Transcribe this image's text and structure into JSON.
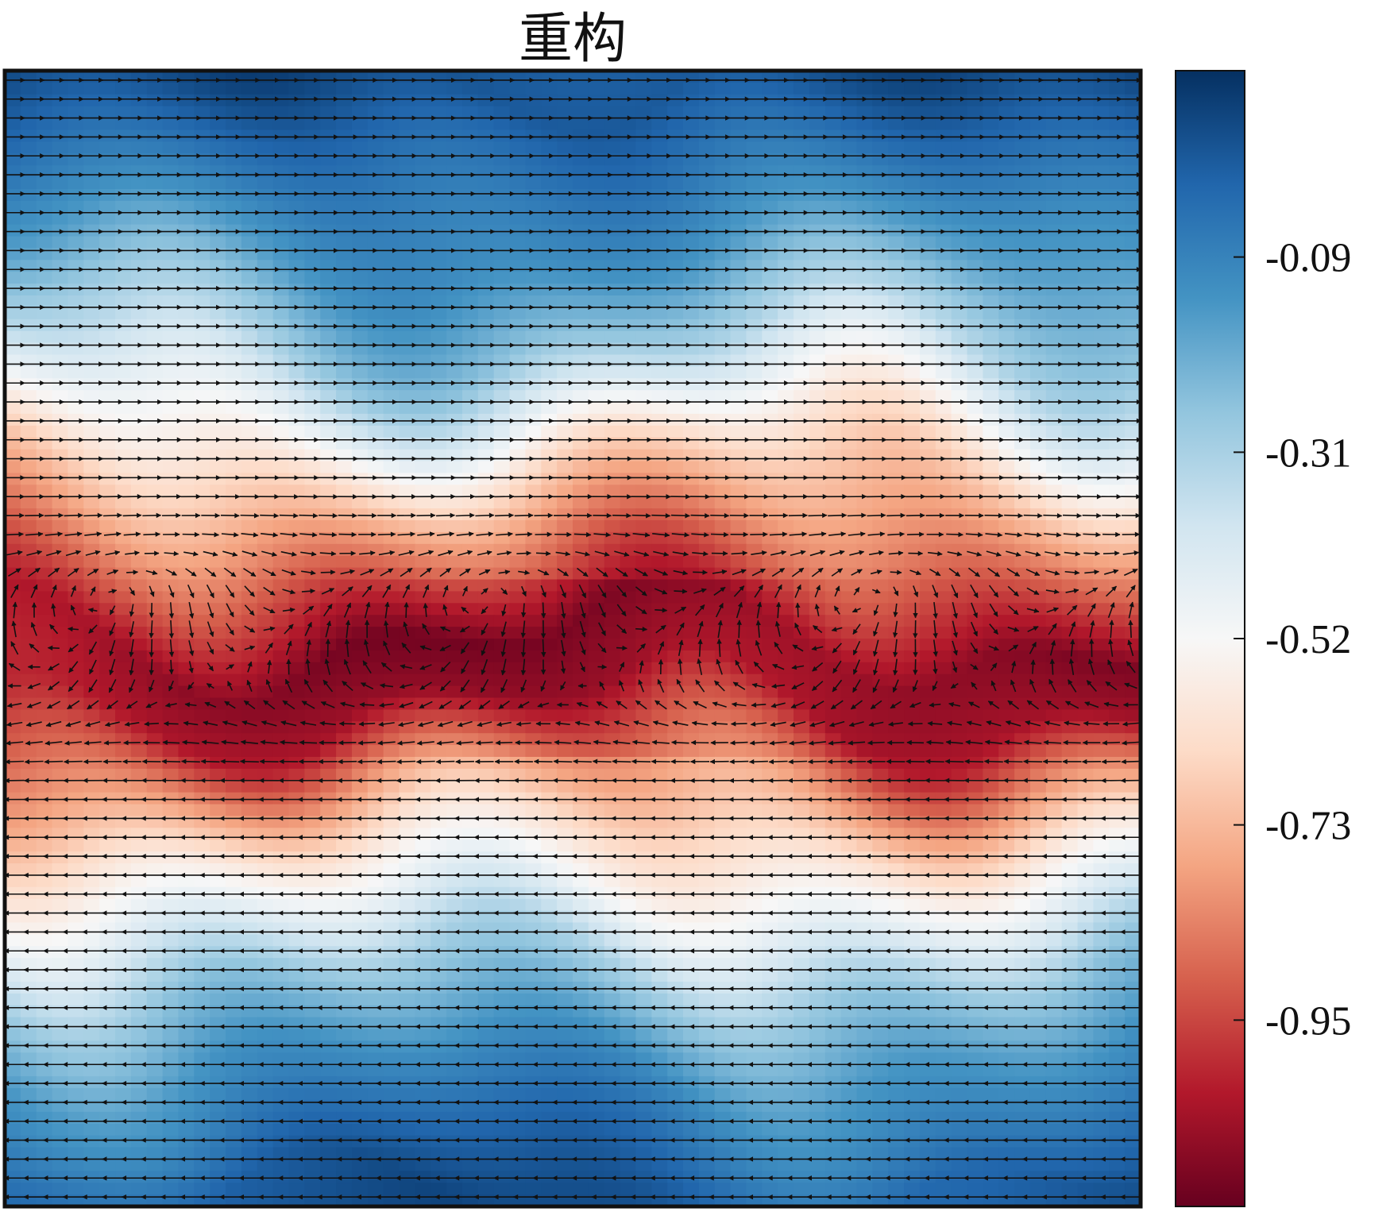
{
  "chart_data": {
    "type": "heatmap",
    "subtype": "heatmap-with-vector-field",
    "title": "重构",
    "xlabel": "",
    "ylabel": "",
    "x_ticks": [],
    "y_ticks": [],
    "colormap": "RdBu",
    "colormap_stops": [
      "#67001f",
      "#b2182b",
      "#d6604d",
      "#f4a582",
      "#fddbc7",
      "#f7f7f7",
      "#d1e5f0",
      "#92c5de",
      "#4393c3",
      "#2166ac",
      "#053061"
    ],
    "colorbar": {
      "placement": "right",
      "ticks": [
        {
          "value": -0.95,
          "label": "-0.95"
        },
        {
          "value": -0.73,
          "label": "-0.73"
        },
        {
          "value": -0.52,
          "label": "-0.52"
        },
        {
          "value": -0.31,
          "label": "-0.31"
        },
        {
          "value": -0.09,
          "label": "-0.09"
        }
      ],
      "range": [
        -1.16,
        0.12
      ]
    },
    "field": {
      "description_of_pattern": "horizontal shear layer: blue bands at top and bottom, red band in the middle",
      "profile_rows": [
        {
          "y": 0.0,
          "value": 0.06
        },
        {
          "y": 0.08,
          "value": -0.05
        },
        {
          "y": 0.16,
          "value": -0.15
        },
        {
          "y": 0.24,
          "value": -0.3
        },
        {
          "y": 0.3,
          "value": -0.48
        },
        {
          "y": 0.36,
          "value": -0.68
        },
        {
          "y": 0.43,
          "value": -0.88
        },
        {
          "y": 0.5,
          "value": -1.08
        },
        {
          "y": 0.56,
          "value": -1.04
        },
        {
          "y": 0.62,
          "value": -0.82
        },
        {
          "y": 0.68,
          "value": -0.62
        },
        {
          "y": 0.74,
          "value": -0.46
        },
        {
          "y": 0.8,
          "value": -0.28
        },
        {
          "y": 0.88,
          "value": -0.12
        },
        {
          "y": 1.0,
          "value": 0.03
        }
      ],
      "vectors": {
        "upper_half_direction": "right",
        "lower_half_direction": "left",
        "rows": 60,
        "cols": 58
      }
    }
  }
}
